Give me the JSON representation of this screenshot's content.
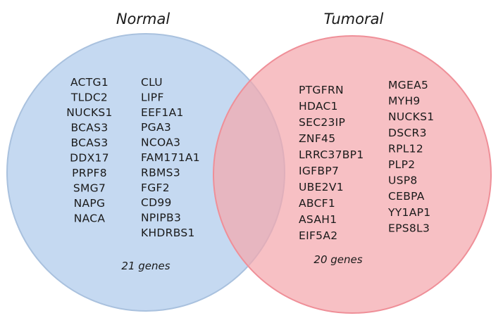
{
  "sets": {
    "normal": {
      "title": "Normal",
      "fill": "#c5d9f1",
      "stroke": "#a9c1de",
      "genes_col1": [
        "ACTG1",
        "TLDC2",
        "NUCKS1",
        "BCAS3",
        "BCAS3",
        "DDX17",
        "PRPF8",
        "SMG7",
        "NAPG",
        "NACA"
      ],
      "genes_col2": [
        "CLU",
        "LIPF",
        "EEF1A1",
        "PGA3",
        "NCOA3",
        "FAM171A1",
        "RBMS3",
        "FGF2",
        "CD99",
        "NPIPB3",
        "KHDRBS1"
      ],
      "count_label": "21 genes"
    },
    "tumoral": {
      "title": "Tumoral",
      "fill": "#f4a7ad",
      "stroke": "#ef8f98",
      "genes_col1": [
        "PTGFRN",
        "HDAC1",
        "SEC23IP",
        "ZNF45",
        "LRRC37BP1",
        "IGFBP7",
        "UBE2V1",
        "ABCF1",
        "ASAH1",
        "EIF5A2"
      ],
      "genes_col2": [
        "MGEA5",
        "MYH9",
        "NUCKS1",
        "DSCR3",
        "RPL12",
        "PLP2",
        "USP8",
        "CEBPA",
        "YY1AP1",
        "EPS8L3"
      ],
      "count_label": "20 genes"
    }
  }
}
